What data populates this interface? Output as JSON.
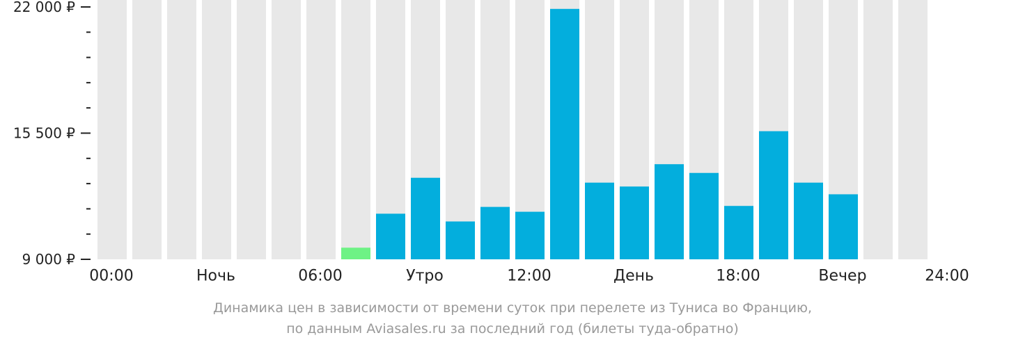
{
  "chart_data": {
    "type": "bar",
    "categories": [
      "00:00",
      "01:00",
      "02:00",
      "03:00",
      "04:00",
      "05:00",
      "06:00",
      "07:00",
      "08:00",
      "09:00",
      "10:00",
      "11:00",
      "12:00",
      "13:00",
      "14:00",
      "15:00",
      "16:00",
      "17:00",
      "18:00",
      "19:00",
      "20:00",
      "21:00",
      "22:00",
      "23:00"
    ],
    "values": [
      null,
      null,
      null,
      null,
      null,
      null,
      null,
      9600,
      11350,
      13200,
      10950,
      11700,
      11450,
      21900,
      12950,
      12750,
      13900,
      13450,
      11750,
      15600,
      12950,
      12350,
      null,
      null
    ],
    "highlight_index": 7,
    "y_ticks": [
      {
        "value": 22000,
        "label": "22 000 ₽"
      },
      {
        "value": 15500,
        "label": "15 500 ₽"
      },
      {
        "value": 9000,
        "label": "9 000 ₽"
      }
    ],
    "y_minor_ticks": [
      20700,
      19400,
      18100,
      16800,
      14200,
      12900,
      11600,
      10300
    ],
    "ylim": [
      9000,
      22000
    ],
    "x_labels": [
      {
        "slot": 0,
        "label": "00:00"
      },
      {
        "slot": 3,
        "label": "Ночь"
      },
      {
        "slot": 6,
        "label": "06:00"
      },
      {
        "slot": 9,
        "label": "Утро"
      },
      {
        "slot": 12,
        "label": "12:00"
      },
      {
        "slot": 15,
        "label": "День"
      },
      {
        "slot": 18,
        "label": "18:00"
      },
      {
        "slot": 21,
        "label": "Вечер"
      },
      {
        "slot": 24,
        "label": "24:00"
      }
    ],
    "colors": {
      "bar": "#03aedd",
      "highlight": "#6ef285",
      "background_column": "#e8e8e8",
      "axis": "#222222"
    }
  },
  "caption": {
    "line1": "Динамика цен в зависимости от времени суток при перелете из Туниса во Францию,",
    "line2": "по данным Aviasales.ru за последний год (билеты туда-обратно)"
  }
}
